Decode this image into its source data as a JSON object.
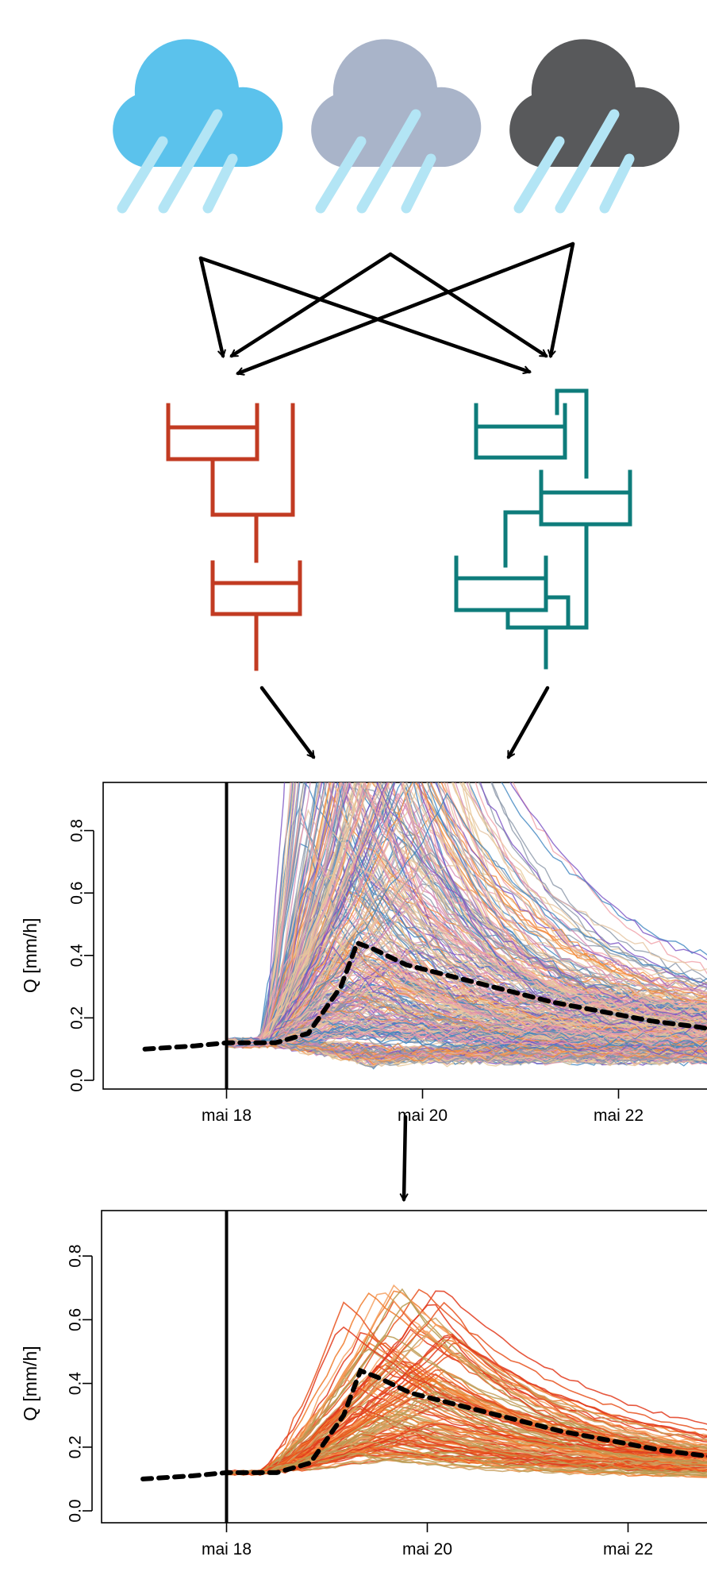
{
  "clouds": [
    {
      "name": "forecast-cloud-1",
      "color": "#5bc2ec"
    },
    {
      "name": "forecast-cloud-2",
      "color": "#a9b4c9"
    },
    {
      "name": "forecast-cloud-3",
      "color": "#58595b"
    }
  ],
  "rain_color": "#b3e5f5",
  "model_colors": {
    "model_1": "#c23b22",
    "model_2": "#0e7c7b"
  },
  "chart_data": [
    {
      "type": "line",
      "title": "",
      "xlabel": "",
      "ylabel": "Q [mm/h]",
      "x_ticks": [
        "mai 18",
        "mai 20",
        "mai 22"
      ],
      "y_ticks": [
        "0.0",
        "0.2",
        "0.4",
        "0.6",
        "0.8"
      ],
      "xlim": [
        "mai 17",
        "mai 23"
      ],
      "ylim": [
        0,
        0.9
      ],
      "forecast_start": "mai 18",
      "grid": false,
      "observed": {
        "name": "observed",
        "style": "black dashed",
        "x": [
          "mai 17 04:00",
          "mai 17 16:00",
          "mai 18 00:00",
          "mai 18 12:00",
          "mai 18 20:00",
          "mai 19 04:00",
          "mai 19 08:00",
          "mai 19 12:00",
          "mai 19 20:00",
          "mai 20 08:00",
          "mai 20 20:00",
          "mai 21 08:00",
          "mai 21 20:00",
          "mai 22 08:00",
          "mai 22 20:00",
          "mai 23 00:00"
        ],
        "y": [
          0.1,
          0.11,
          0.12,
          0.12,
          0.15,
          0.3,
          0.44,
          0.42,
          0.37,
          0.33,
          0.29,
          0.25,
          0.22,
          0.19,
          0.17,
          0.16
        ]
      },
      "ensemble": {
        "members": 400,
        "colors": [
          "#e8c896",
          "#f0a0a8",
          "#7b52c4",
          "#8a96a8",
          "#f28c3c",
          "#3f86c0",
          "#e5c4a0",
          "#d58ab4"
        ],
        "peak_range": [
          0.08,
          1.6
        ],
        "baseline": 0.12
      }
    },
    {
      "type": "line",
      "title": "",
      "xlabel": "",
      "ylabel": "Q [mm/h]",
      "x_ticks": [
        "mai 18",
        "mai 20",
        "mai 22"
      ],
      "y_ticks": [
        "0.0",
        "0.2",
        "0.4",
        "0.6",
        "0.8"
      ],
      "xlim": [
        "mai 17",
        "mai 23"
      ],
      "ylim": [
        0,
        0.9
      ],
      "forecast_start": "mai 18",
      "grid": false,
      "observed": {
        "name": "observed",
        "style": "black dashed",
        "x": [
          "mai 17 04:00",
          "mai 17 16:00",
          "mai 18 00:00",
          "mai 18 12:00",
          "mai 18 20:00",
          "mai 19 04:00",
          "mai 19 08:00",
          "mai 19 12:00",
          "mai 19 20:00",
          "mai 20 08:00",
          "mai 20 20:00",
          "mai 21 08:00",
          "mai 21 20:00",
          "mai 22 08:00",
          "mai 22 20:00",
          "mai 23 00:00"
        ],
        "y": [
          0.1,
          0.11,
          0.12,
          0.12,
          0.15,
          0.3,
          0.44,
          0.42,
          0.37,
          0.33,
          0.29,
          0.25,
          0.22,
          0.19,
          0.17,
          0.16
        ]
      },
      "ensemble": {
        "members": 130,
        "colors": [
          "#e8521e",
          "#f07a2a",
          "#f5a060",
          "#c8a060",
          "#b89a50",
          "#e23a1c"
        ],
        "peak_range": [
          0.18,
          0.71
        ],
        "baseline": 0.12
      }
    }
  ]
}
